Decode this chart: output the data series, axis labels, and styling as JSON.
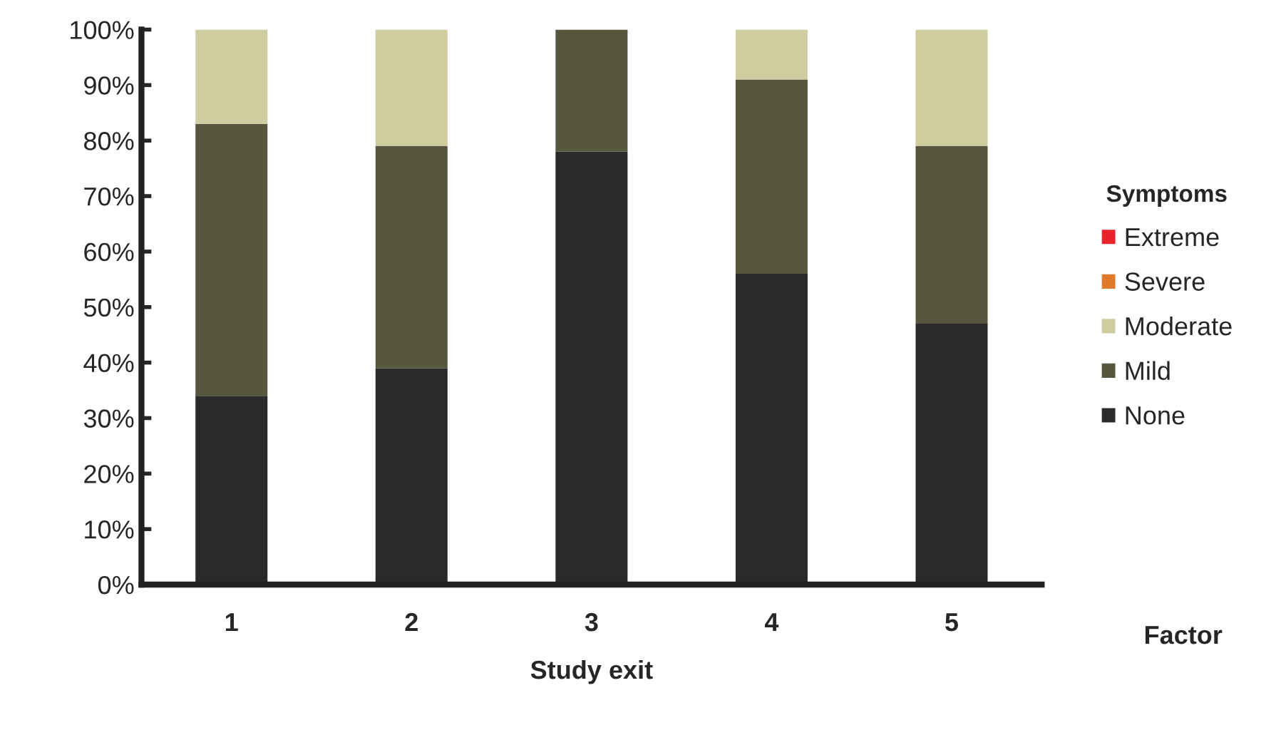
{
  "chart_data": {
    "type": "bar",
    "stacked": true,
    "xlabel": "Study exit",
    "legend_title": "Symptoms",
    "legend": "right",
    "grid": false,
    "categories": [
      "1",
      "2",
      "3",
      "4",
      "5"
    ],
    "series": [
      {
        "name": "None",
        "color": "#2a2a2a",
        "values": [
          34,
          39,
          78,
          56,
          47
        ]
      },
      {
        "name": "Mild",
        "color": "#57563f",
        "values": [
          49,
          40,
          22,
          35,
          32
        ]
      },
      {
        "name": "Moderate",
        "color": "#cfcca0",
        "values": [
          17,
          21,
          0,
          9,
          21
        ]
      },
      {
        "name": "Severe",
        "color": "#e07a2a",
        "values": [
          0,
          0,
          0,
          0,
          0
        ]
      },
      {
        "name": "Extreme",
        "color": "#e8212a",
        "values": [
          0,
          0,
          0,
          0,
          0
        ]
      }
    ],
    "ylim": [
      0,
      100
    ],
    "yticks": [
      {
        "value": 0,
        "label": "0%"
      },
      {
        "value": 10,
        "label": "10%"
      },
      {
        "value": 20,
        "label": "20%"
      },
      {
        "value": 30,
        "label": "30%"
      },
      {
        "value": 40,
        "label": "40%"
      },
      {
        "value": 50,
        "label": "50%"
      },
      {
        "value": 60,
        "label": "60%"
      },
      {
        "value": 70,
        "label": "70%"
      },
      {
        "value": 80,
        "label": "80%"
      },
      {
        "value": 90,
        "label": "90%"
      },
      {
        "value": 100,
        "label": "100%"
      }
    ],
    "annotations": [
      "Factor"
    ]
  }
}
